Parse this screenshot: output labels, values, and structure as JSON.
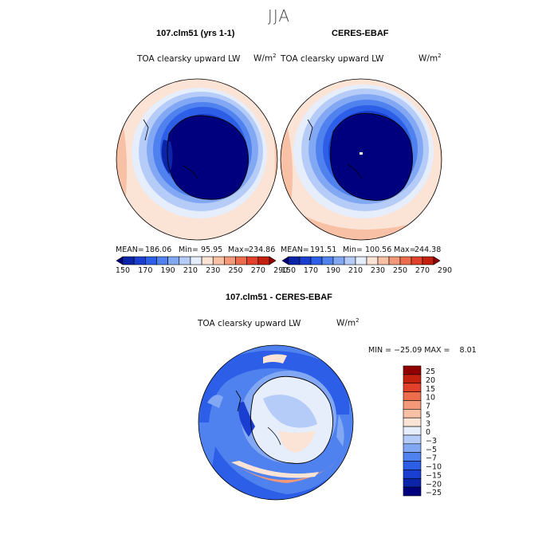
{
  "season_title": "JJA",
  "colors": {
    "seq": [
      "#00007f",
      "#0b24a8",
      "#1a3fd0",
      "#2c5ee8",
      "#4f81ef",
      "#82a8f4",
      "#b6ccf8",
      "#e6edfb",
      "#fbe4d6",
      "#f8c0a4",
      "#f39878",
      "#ec6c4c",
      "#e1402a",
      "#c4200f",
      "#900000"
    ],
    "diff": [
      "#00007f",
      "#0b24a8",
      "#1a3fd0",
      "#2c5ee8",
      "#4f81ef",
      "#82a8f4",
      "#b6ccf8",
      "#e6edfb",
      "#fbe4d6",
      "#f8c0a4",
      "#f39878",
      "#ec6c4c",
      "#e1402a",
      "#c4200f",
      "#900000"
    ]
  },
  "chart_data": [
    {
      "type": "heatmap",
      "title": "107.clm51 (yrs 1-1)",
      "subtitle": "TOA clearsky upward LW",
      "units": "W/m",
      "units_sup": "2",
      "stats": {
        "mean_label": "MEAN=",
        "mean": "186.06",
        "min_label": "Min=",
        "min": "95.95",
        "max_label": "Max=",
        "max": "234.86"
      },
      "colorbar_ticks": [
        "150",
        "170",
        "190",
        "210",
        "230",
        "250",
        "270",
        "290"
      ]
    },
    {
      "type": "heatmap",
      "title": "CERES-EBAF",
      "subtitle": "TOA clearsky upward LW",
      "units": "W/m",
      "units_sup": "2",
      "stats": {
        "mean_label": "MEAN=",
        "mean": "191.51",
        "min_label": "Min=",
        "min": "100.56",
        "max_label": "Max=",
        "max": "244.38"
      },
      "colorbar_ticks": [
        "150",
        "170",
        "190",
        "210",
        "230",
        "250",
        "270",
        "290"
      ]
    },
    {
      "type": "heatmap",
      "title": "107.clm51 - CERES-EBAF",
      "subtitle": "TOA clearsky upward LW",
      "units": "W/m",
      "units_sup": "2",
      "stats_line": "MIN = −25.09 MAX =    8.01",
      "colorbar_ticks": [
        "25",
        "20",
        "15",
        "10",
        "7",
        "5",
        "3",
        "0",
        "−3",
        "−5",
        "−7",
        "−10",
        "−15",
        "−20",
        "−25"
      ]
    }
  ]
}
